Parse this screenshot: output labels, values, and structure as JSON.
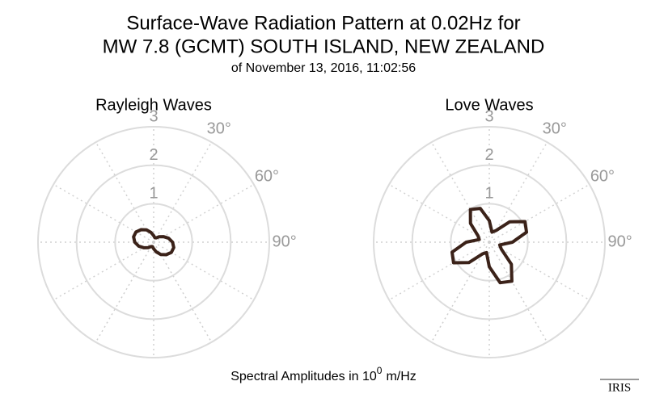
{
  "figure": {
    "title_lines": [
      "Surface-Wave Radiation Pattern at 0.02Hz for",
      "MW 7.8 (GCMT) SOUTH ISLAND, NEW ZEALAND"
    ],
    "subtitle": "of November 13, 2016, 11:02:56",
    "caption": [
      "Spectral Amplitudes in 10",
      "0",
      "m/Hz"
    ],
    "logo": "IRIS"
  },
  "chart_data": [
    {
      "type": "polar",
      "title": "Rayleigh Waves",
      "color": "#3b2219",
      "theta": [
        0,
        15,
        30,
        45,
        60,
        75,
        90,
        105,
        120,
        135,
        150,
        165,
        180,
        195,
        210,
        225,
        240,
        255,
        270,
        285,
        300,
        315,
        330,
        345
      ],
      "values": [
        0.17,
        0.12,
        0.13,
        0.2,
        0.29,
        0.4,
        0.49,
        0.54,
        0.53,
        0.46,
        0.37,
        0.26,
        0.17,
        0.12,
        0.13,
        0.2,
        0.29,
        0.4,
        0.49,
        0.54,
        0.53,
        0.46,
        0.37,
        0.26
      ],
      "rlim": [
        0,
        3
      ],
      "rticks": [
        1,
        2,
        3
      ],
      "thetaticks": [
        {
          "value": 30,
          "label": "30°"
        },
        {
          "value": 60,
          "label": "60°"
        },
        {
          "value": 90,
          "label": "90°"
        }
      ],
      "thetagrid": 30,
      "direction": "clockwise",
      "zero": "north"
    },
    {
      "type": "polar",
      "title": "Love Waves",
      "color": "#3b2219",
      "theta": [
        0,
        15,
        30,
        45,
        60,
        75,
        90,
        105,
        120,
        135,
        150,
        165,
        180,
        195,
        210,
        225,
        240,
        255,
        270,
        285,
        300,
        315,
        330,
        345
      ],
      "values": [
        0.56,
        0.27,
        0.35,
        0.75,
        1.07,
        1.0,
        0.6,
        0.28,
        0.36,
        0.81,
        1.17,
        1.09,
        0.64,
        0.28,
        0.35,
        0.75,
        1.07,
        1.0,
        0.6,
        0.27,
        0.34,
        0.69,
        0.98,
        0.91
      ],
      "rlim": [
        0,
        3
      ],
      "rticks": [
        1,
        2,
        3
      ],
      "thetaticks": [
        {
          "value": 30,
          "label": "30°"
        },
        {
          "value": 60,
          "label": "60°"
        },
        {
          "value": 90,
          "label": "90°"
        }
      ],
      "thetagrid": 30,
      "direction": "clockwise",
      "zero": "north"
    }
  ]
}
